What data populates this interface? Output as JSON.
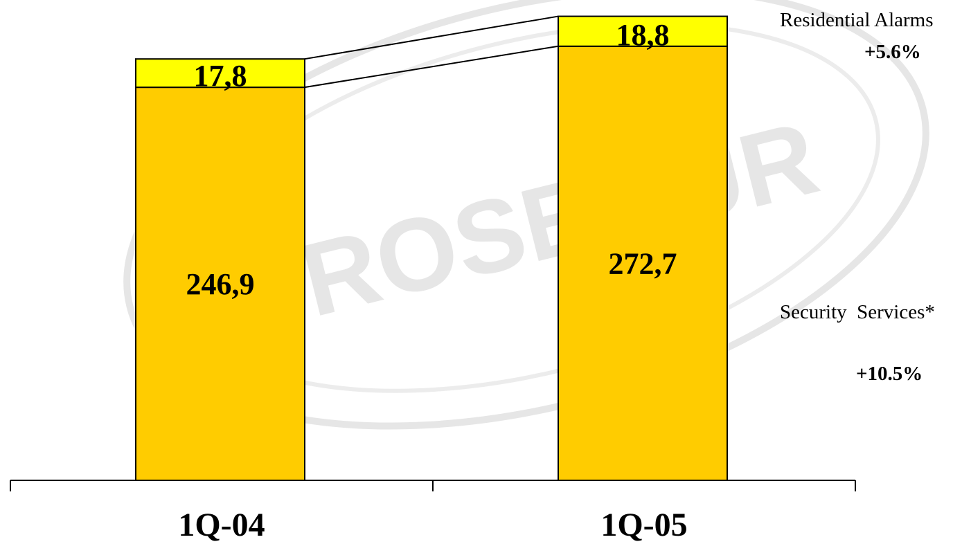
{
  "watermark": {
    "text": "PROSEGUR"
  },
  "chart_data": {
    "type": "bar",
    "stacked": true,
    "categories": [
      "1Q-04",
      "1Q-05"
    ],
    "series": [
      {
        "key": "security",
        "values": [
          246.9,
          272.7
        ],
        "labels": [
          "246,9",
          "272,7"
        ],
        "color": "#FFCC00"
      },
      {
        "key": "alarms",
        "values": [
          17.8,
          18.8
        ],
        "labels": [
          "17,8",
          "18,8"
        ],
        "color": "#FFFF00"
      }
    ],
    "annotations": [
      {
        "series": "alarms",
        "label": "Residential Alarms",
        "growth": "+5.6%"
      },
      {
        "series": "security",
        "label": "Security  Services*",
        "growth": "+10.5%"
      }
    ],
    "connector_lines": true,
    "legend": "right",
    "grid": false
  }
}
